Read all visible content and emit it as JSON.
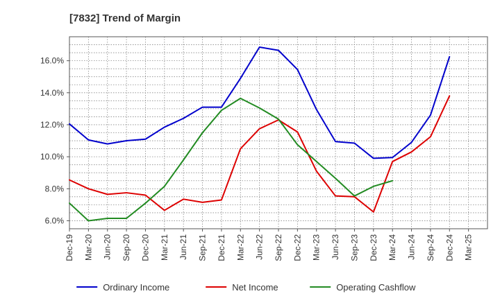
{
  "chart_data": {
    "type": "line",
    "title": "[7832]  Trend of Margin",
    "xlabel": "",
    "ylabel": "",
    "categories": [
      "Dec-19",
      "Mar-20",
      "Jun-20",
      "Sep-20",
      "Dec-20",
      "Mar-21",
      "Jun-21",
      "Sep-21",
      "Dec-21",
      "Mar-22",
      "Jun-22",
      "Sep-22",
      "Dec-22",
      "Mar-23",
      "Jun-23",
      "Sep-23",
      "Dec-23",
      "Mar-24",
      "Jun-24",
      "Sep-24",
      "Dec-24",
      "Mar-25"
    ],
    "ylim": [
      5.5,
      17.5
    ],
    "yticks": [
      6,
      8,
      10,
      12,
      14,
      16
    ],
    "ytick_labels": [
      "6.0%",
      "8.0%",
      "10.0%",
      "12.0%",
      "14.0%",
      "16.0%"
    ],
    "grid": true,
    "legend_position": "bottom",
    "series": [
      {
        "name": "Ordinary Income",
        "color": "#0000cc",
        "values": [
          12.05,
          11.05,
          10.8,
          11.0,
          11.1,
          11.85,
          12.4,
          13.1,
          13.1,
          14.9,
          16.85,
          16.65,
          15.45,
          12.95,
          10.95,
          10.85,
          9.9,
          9.95,
          10.9,
          12.6,
          16.25,
          null
        ]
      },
      {
        "name": "Net Income",
        "color": "#dd0000",
        "values": [
          8.55,
          8.0,
          7.65,
          7.75,
          7.6,
          6.65,
          7.35,
          7.15,
          7.3,
          10.5,
          11.75,
          12.3,
          11.55,
          9.1,
          7.55,
          7.5,
          6.55,
          9.7,
          10.3,
          11.25,
          13.8,
          null
        ]
      },
      {
        "name": "Operating Cashflow",
        "color": "#228b22",
        "values": [
          7.1,
          6.0,
          6.15,
          6.15,
          7.1,
          8.15,
          9.8,
          11.5,
          12.9,
          13.65,
          13.05,
          12.35,
          10.75,
          9.7,
          8.65,
          7.55,
          8.15,
          8.5,
          null,
          null,
          null,
          null
        ]
      }
    ]
  }
}
